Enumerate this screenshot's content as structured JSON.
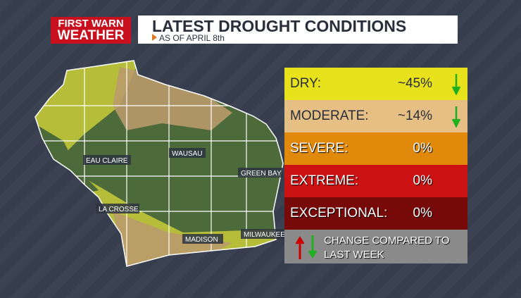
{
  "logo": {
    "line1": "FIRST WARN",
    "line2": "WEATHER"
  },
  "header": {
    "title": "LATEST DROUGHT CONDITIONS",
    "subtitle": "AS OF APRIL 8th"
  },
  "map": {
    "cities": [
      "EAU CLAIRE",
      "WAUSAU",
      "GREEN BAY",
      "LA CROSSE",
      "MADISON",
      "MILWAUKEE"
    ]
  },
  "legend": {
    "rows": [
      {
        "label": "DRY:",
        "value": "~45%"
      },
      {
        "label": "MODERATE:",
        "value": "~14%"
      },
      {
        "label": "SEVERE:",
        "value": "0%"
      },
      {
        "label": "EXTREME:",
        "value": "0%"
      },
      {
        "label": "EXCEPTIONAL:",
        "value": "0%"
      }
    ],
    "footer": "CHANGE COMPARED TO LAST WEEK"
  }
}
